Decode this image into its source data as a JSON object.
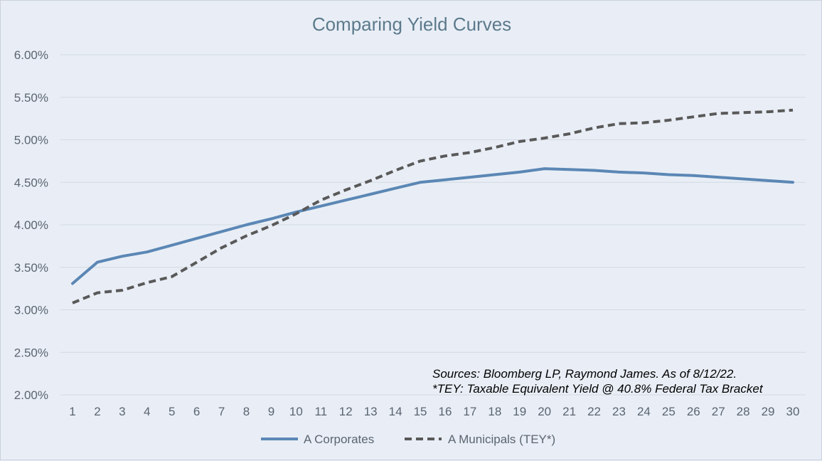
{
  "chart_data": {
    "type": "line",
    "title": "Comparing Yield Curves",
    "xlabel": "",
    "ylabel": "",
    "categories": [
      "1",
      "2",
      "3",
      "4",
      "5",
      "6",
      "7",
      "8",
      "9",
      "10",
      "11",
      "12",
      "13",
      "14",
      "15",
      "16",
      "17",
      "18",
      "19",
      "20",
      "21",
      "22",
      "23",
      "24",
      "25",
      "26",
      "27",
      "28",
      "29",
      "30"
    ],
    "y_tick_labels": [
      "2.00%",
      "2.50%",
      "3.00%",
      "3.50%",
      "4.00%",
      "4.50%",
      "5.00%",
      "5.50%",
      "6.00%"
    ],
    "ylim": [
      2.0,
      6.0
    ],
    "grid": true,
    "legend_position": "bottom",
    "series": [
      {
        "name": "A Corporates",
        "color": "#5b87b5",
        "style": "solid",
        "values": [
          3.31,
          3.56,
          3.63,
          3.68,
          3.76,
          3.84,
          3.92,
          4.0,
          4.07,
          4.15,
          4.22,
          4.29,
          4.36,
          4.43,
          4.5,
          4.53,
          4.56,
          4.59,
          4.62,
          4.66,
          4.65,
          4.64,
          4.62,
          4.61,
          4.59,
          4.58,
          4.56,
          4.54,
          4.52,
          4.5
        ]
      },
      {
        "name": "A Municipals (TEY*)",
        "color": "#595959",
        "style": "dashed",
        "values": [
          3.08,
          3.2,
          3.23,
          3.32,
          3.39,
          3.56,
          3.73,
          3.87,
          3.99,
          4.13,
          4.29,
          4.41,
          4.52,
          4.64,
          4.75,
          4.81,
          4.85,
          4.91,
          4.98,
          5.02,
          5.07,
          5.14,
          5.19,
          5.2,
          5.23,
          5.27,
          5.31,
          5.32,
          5.33,
          5.35
        ]
      }
    ],
    "annotations": [
      "Sources: Bloomberg LP, Raymond James. As of 8/12/22.",
      "*TEY: Taxable Equivalent Yield @ 40.8% Federal Tax Bracket"
    ]
  }
}
